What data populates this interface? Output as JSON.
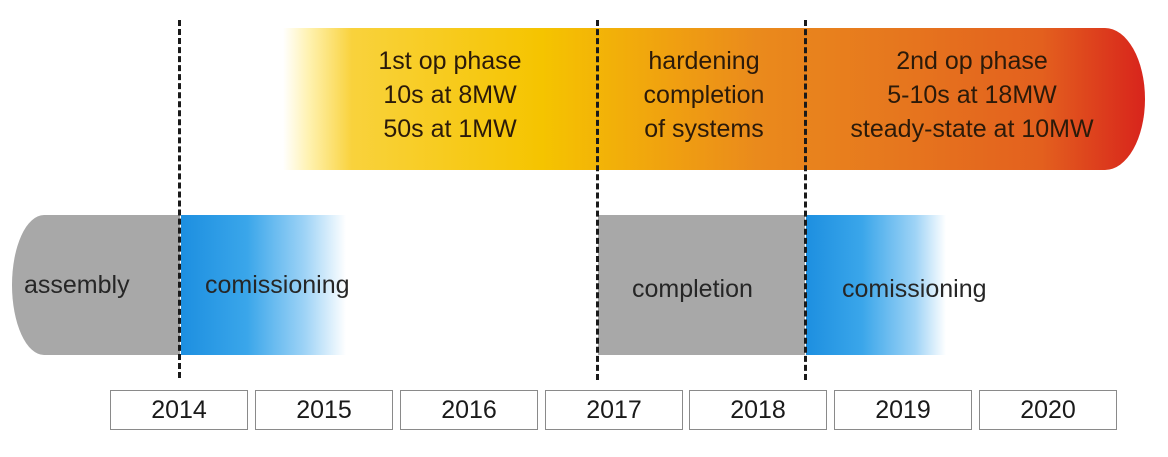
{
  "phases": {
    "op1": [
      "1st op phase",
      "10s at 8MW",
      "50s at 1MW"
    ],
    "hardening": [
      "hardening",
      "completion",
      "of systems"
    ],
    "op2": [
      "2nd op phase",
      "5-10s at 18MW",
      "steady-state at 10MW"
    ]
  },
  "activities": {
    "assembly": "assembly",
    "commissioning_1": "comissioning",
    "completion": "completion",
    "commissioning_2": "comissioning"
  },
  "years": [
    "2014",
    "2015",
    "2016",
    "2017",
    "2018",
    "2019",
    "2020"
  ],
  "colors": {
    "phase_start": "#f5c400",
    "phase_mid": "#e6761e",
    "phase_end": "#d8241c",
    "activity_gray": "#a8a8a8",
    "commissioning_blue": "#1d8fe0"
  }
}
